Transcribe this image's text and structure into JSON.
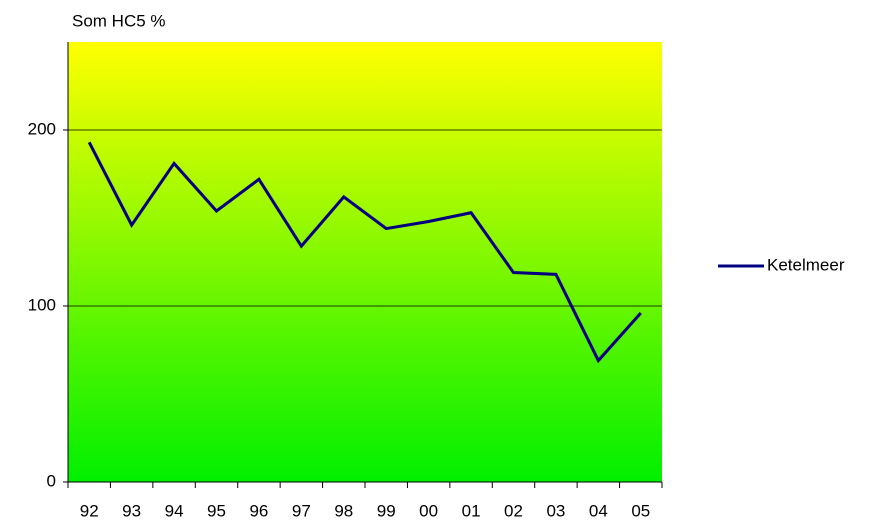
{
  "chart_data": {
    "type": "line",
    "title": "Som HC5 %",
    "categories": [
      "92",
      "93",
      "94",
      "95",
      "96",
      "97",
      "98",
      "99",
      "00",
      "01",
      "02",
      "03",
      "04",
      "05"
    ],
    "series": [
      {
        "name": "Ketelmeer",
        "color": "#000080",
        "values": [
          193,
          146,
          181,
          154,
          172,
          134,
          162,
          144,
          148,
          153,
          119,
          118,
          69,
          96
        ]
      }
    ],
    "ylim": [
      0,
      250
    ],
    "yticks": [
      0,
      100,
      200
    ],
    "grid": true,
    "legend": "right"
  }
}
